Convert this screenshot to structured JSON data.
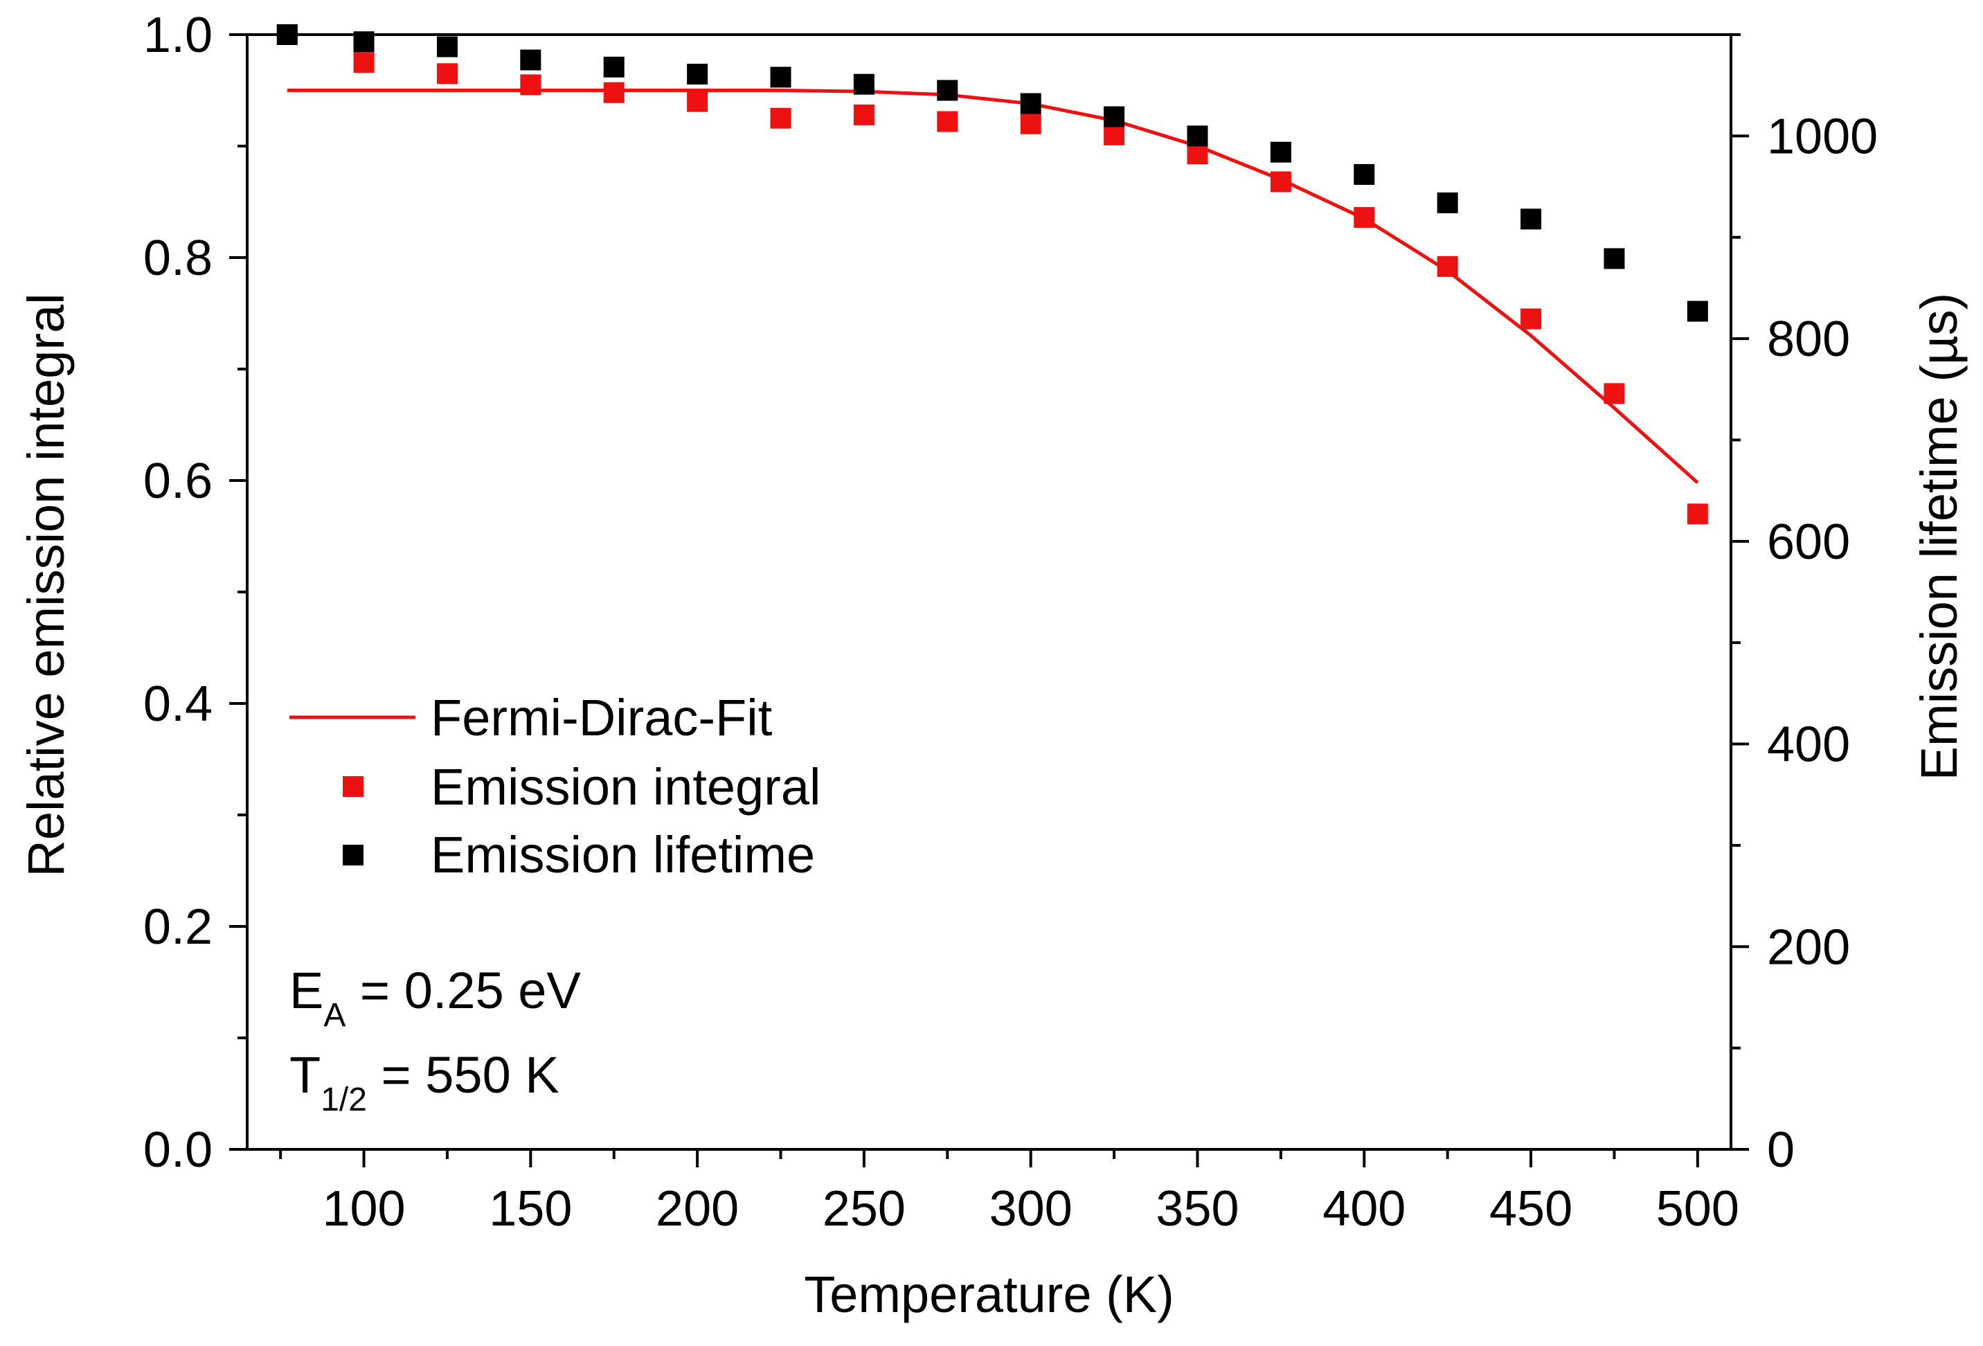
{
  "chart_data": {
    "type": "scatter",
    "xlabel": "Temperature (K)",
    "ylabel_left": "Relative emission integral",
    "ylabel_right": "Emission lifetime (µs)",
    "xlim": [
      65,
      510
    ],
    "ylim_left": [
      0,
      1.0
    ],
    "ylim_right": [
      0,
      1100
    ],
    "x_ticks": [
      100,
      150,
      200,
      250,
      300,
      350,
      400,
      450,
      500
    ],
    "x_tick_labels": [
      "100",
      "150",
      "200",
      "250",
      "300",
      "350",
      "400",
      "450",
      "500"
    ],
    "y_left_ticks": [
      0.0,
      0.2,
      0.4,
      0.6,
      0.8,
      1.0
    ],
    "y_left_tick_labels": [
      "0.0",
      "0.2",
      "0.4",
      "0.6",
      "0.8",
      "1.0"
    ],
    "y_right_ticks": [
      0,
      200,
      400,
      600,
      800,
      1000
    ],
    "y_right_tick_labels": [
      "0",
      "200",
      "400",
      "600",
      "800",
      "1000"
    ],
    "x": [
      77,
      100,
      125,
      150,
      175,
      200,
      225,
      250,
      275,
      300,
      325,
      350,
      375,
      400,
      425,
      450,
      475,
      500
    ],
    "series": [
      {
        "name": "Emission integral",
        "axis": "left",
        "marker": "square",
        "color": "#ee1111",
        "values": [
          1.0,
          0.975,
          0.965,
          0.955,
          0.948,
          0.94,
          0.925,
          0.928,
          0.922,
          0.92,
          0.91,
          0.893,
          0.868,
          0.836,
          0.792,
          0.745,
          0.678,
          0.57
        ]
      },
      {
        "name": "Emission lifetime",
        "axis": "right",
        "marker": "square",
        "color": "#000000",
        "values": [
          1100,
          1093,
          1088,
          1075,
          1068,
          1061,
          1058,
          1051,
          1045,
          1032,
          1019,
          1000,
          984,
          962,
          934,
          918,
          879,
          827
        ]
      }
    ],
    "fit": {
      "name": "Fermi-Dirac-Fit",
      "axis": "left",
      "color": "#ee1111",
      "x": [
        77,
        100,
        125,
        150,
        175,
        200,
        225,
        250,
        275,
        300,
        325,
        350,
        375,
        400,
        425,
        450,
        475,
        500
      ],
      "values": [
        0.95,
        0.95,
        0.95,
        0.95,
        0.95,
        0.95,
        0.95,
        0.949,
        0.946,
        0.938,
        0.923,
        0.9,
        0.87,
        0.835,
        0.788,
        0.73,
        0.665,
        0.598
      ]
    },
    "legend": {
      "placement": "lower-left",
      "entries": [
        "Fermi-Dirac-Fit",
        "Emission integral",
        "Emission lifetime"
      ]
    },
    "annotations": {
      "ea_main": "E",
      "ea_sub": "A",
      "ea_value": " = 0.25 eV",
      "t_main": "T",
      "t_sub": "1/2",
      "t_value": " = 550 K"
    },
    "grid": false
  }
}
